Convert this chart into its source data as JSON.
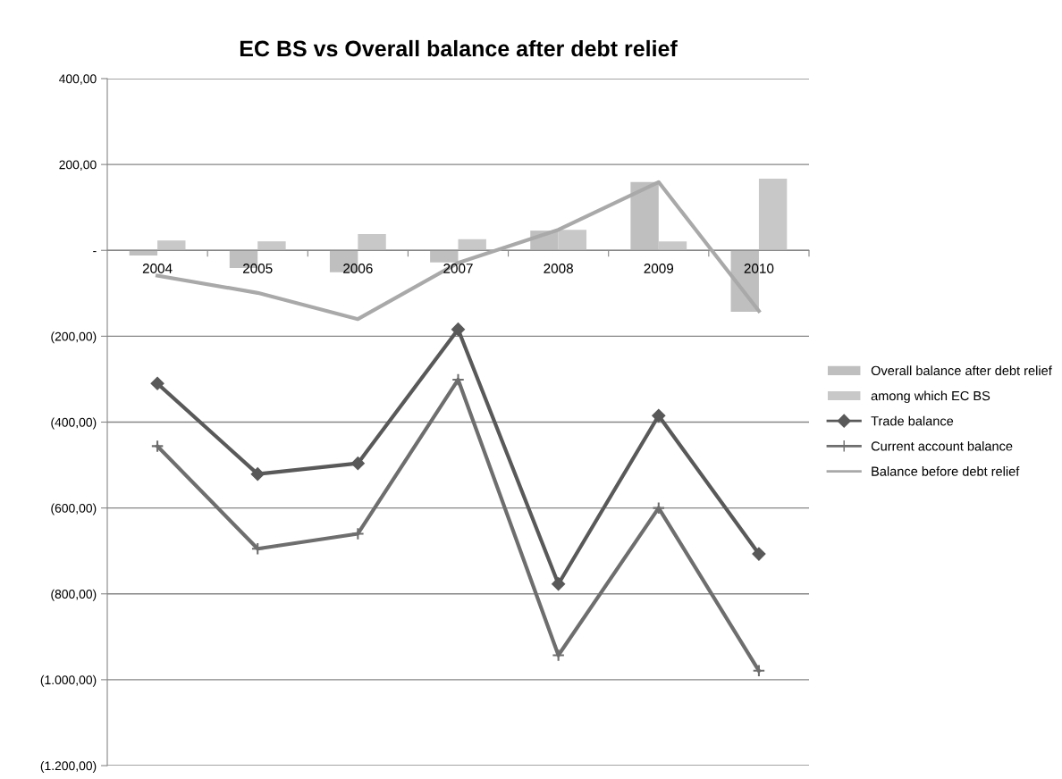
{
  "chart_data": {
    "type": "bar",
    "title": "EC BS vs Overall balance after debt relief",
    "categories": [
      "2004",
      "2005",
      "2006",
      "2007",
      "2008",
      "2009",
      "2010"
    ],
    "series": [
      {
        "name": "Overall balance after debt relief",
        "color": "#bfbfbf",
        "values": [
          -12,
          -41,
          -51,
          -28,
          46,
          159,
          -143
        ]
      },
      {
        "name": "among which EC BS",
        "color": "#c8c8c8",
        "values": [
          23,
          21,
          38,
          26,
          48,
          21,
          167
        ]
      },
      {
        "name": "Trade balance",
        "type": "line",
        "color": "#595959",
        "marker": "diamond",
        "values": [
          -310,
          -521,
          -496,
          -184,
          -777,
          -385,
          -707
        ]
      },
      {
        "name": "Current account balance",
        "type": "line",
        "color": "#6e6e6e",
        "marker": "cross",
        "values": [
          -456,
          -695,
          -660,
          -301,
          -943,
          -600,
          -979
        ]
      },
      {
        "name": "Balance before debt relief",
        "type": "line",
        "color": "#a9a9a9",
        "marker": "none",
        "values": [
          -59,
          -99,
          -160,
          -29,
          48,
          159,
          -141
        ]
      }
    ],
    "ylim": [
      -1200,
      400
    ],
    "yticks": [
      {
        "value": 400,
        "label": "400,00"
      },
      {
        "value": 200,
        "label": "200,00"
      },
      {
        "value": 0,
        "label": "-"
      },
      {
        "value": -200,
        "label": "(200,00)"
      },
      {
        "value": -400,
        "label": "(400,00)"
      },
      {
        "value": -600,
        "label": "(600,00)"
      },
      {
        "value": -800,
        "label": "(800,00)"
      },
      {
        "value": -1000,
        "label": "(1.000,00)"
      },
      {
        "value": -1200,
        "label": "(1.200,00)"
      }
    ],
    "grid": "y",
    "legend": "right"
  }
}
